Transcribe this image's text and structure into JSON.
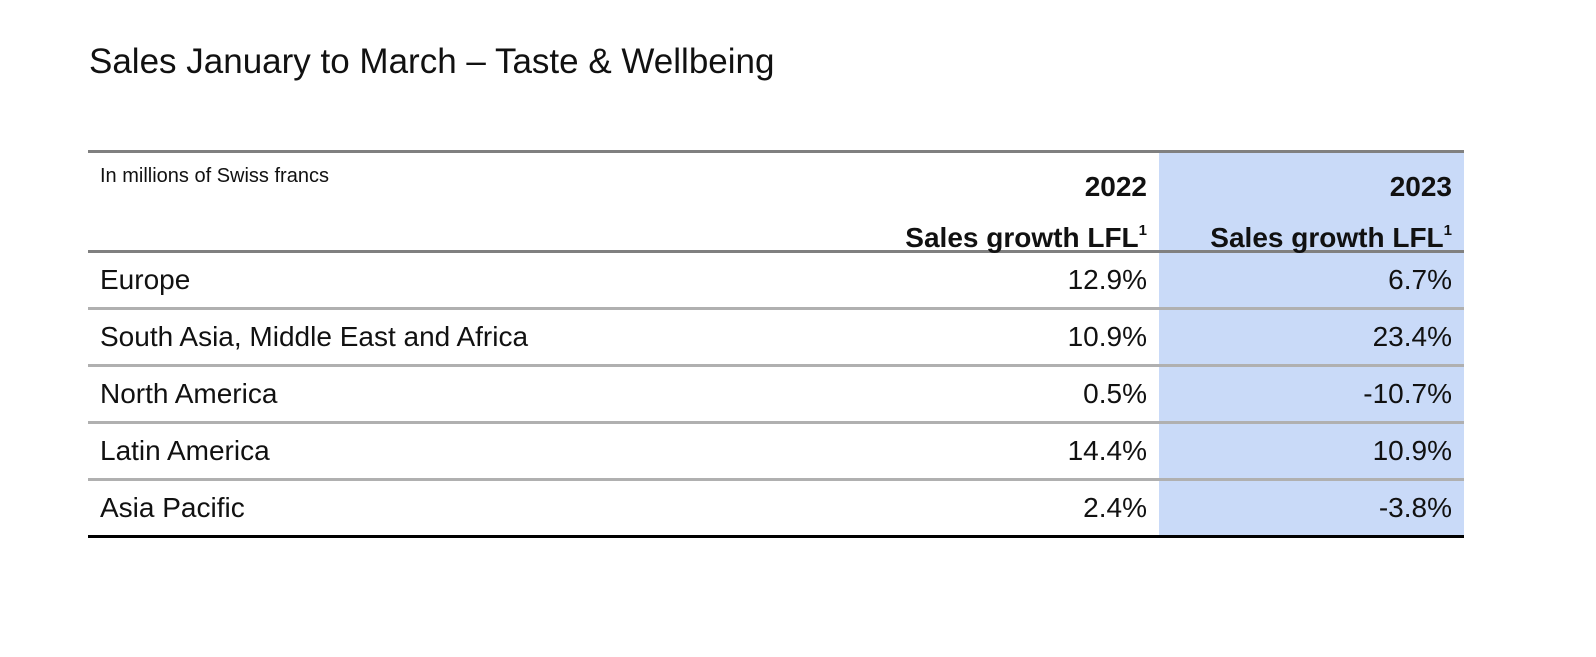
{
  "title": "Sales January to March – Taste & Wellbeing",
  "table": {
    "unit": "In millions of Swiss francs",
    "columns": [
      {
        "year": "2022",
        "label": "Sales growth LFL",
        "note": "1"
      },
      {
        "year": "2023",
        "label": "Sales growth LFL",
        "note": "1"
      }
    ],
    "rows": [
      {
        "region": "Europe",
        "values": [
          "12.9%",
          "6.7%"
        ]
      },
      {
        "region": "South Asia, Middle East and Africa",
        "values": [
          "10.9%",
          "23.4%"
        ]
      },
      {
        "region": "North America",
        "values": [
          "0.5%",
          "-10.7%"
        ]
      },
      {
        "region": "Latin America",
        "values": [
          "14.4%",
          "10.9%"
        ]
      },
      {
        "region": "Asia Pacific",
        "values": [
          "2.4%",
          "-3.8%"
        ]
      }
    ]
  }
}
